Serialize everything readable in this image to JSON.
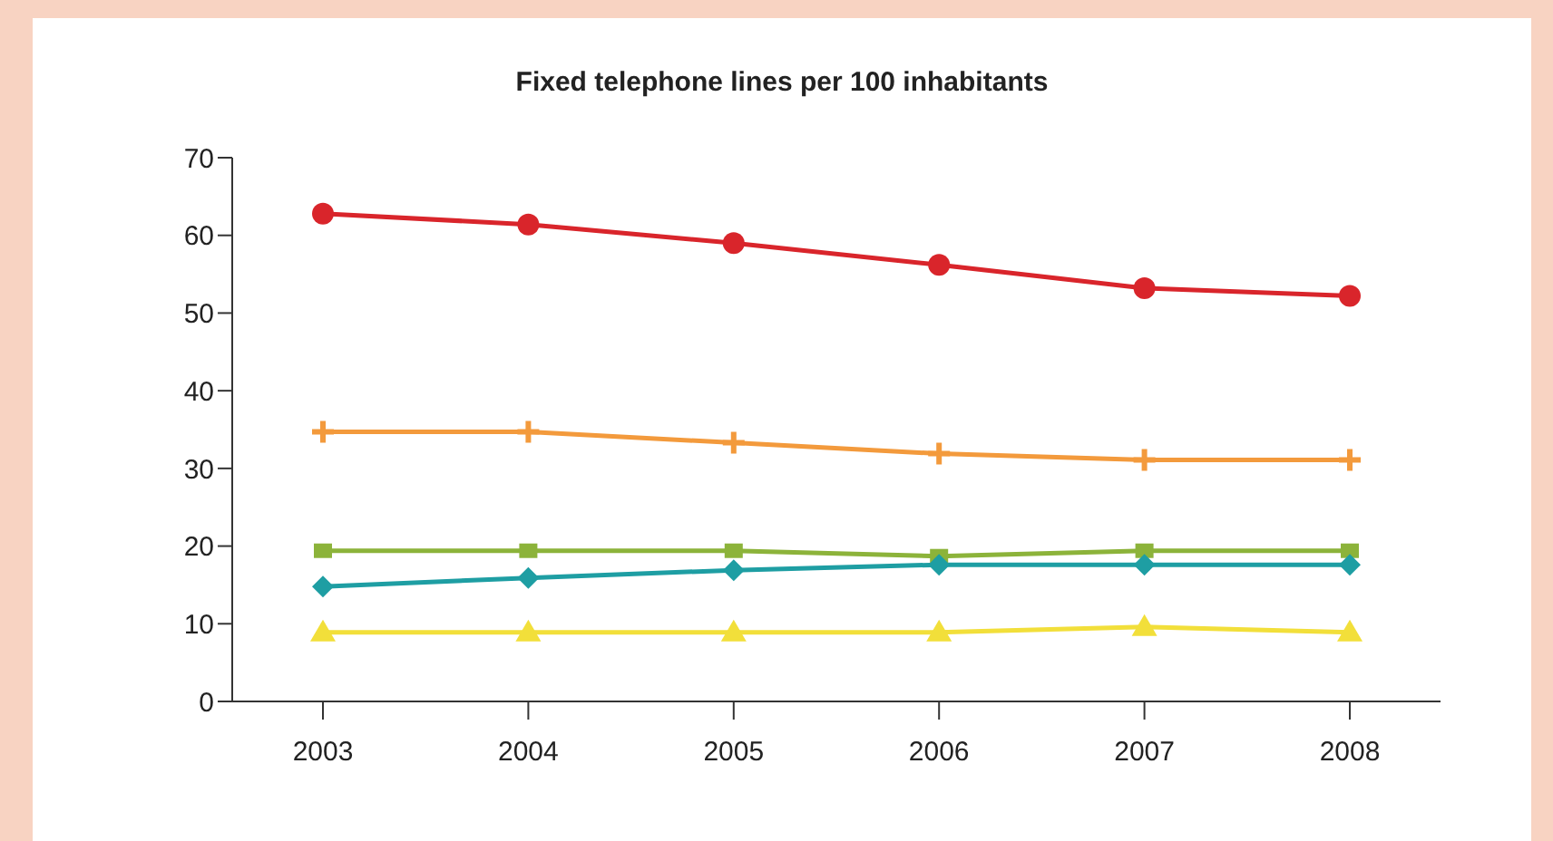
{
  "chart_data": {
    "type": "line",
    "title": "Fixed telephone lines per 100 inhabitants",
    "categories": [
      "2003",
      "2004",
      "2005",
      "2006",
      "2007",
      "2008"
    ],
    "series": [
      {
        "color": "#d9252b",
        "marker": "circle",
        "values": [
          62.8,
          61.4,
          59,
          56.2,
          53.2,
          52.2
        ]
      },
      {
        "color": "#f39a3c",
        "marker": "cross",
        "values": [
          34.7,
          34.7,
          33.3,
          31.9,
          31.1,
          31.1
        ]
      },
      {
        "color": "#8cb33a",
        "marker": "square",
        "values": [
          19.4,
          19.4,
          19.4,
          18.7,
          19.4,
          19.4
        ]
      },
      {
        "color": "#1e9ea3",
        "marker": "diamond",
        "values": [
          14.8,
          15.9,
          16.9,
          17.6,
          17.6,
          17.6
        ]
      },
      {
        "color": "#f2df3a",
        "marker": "triangle",
        "values": [
          8.9,
          8.9,
          8.9,
          8.9,
          9.6,
          8.9
        ]
      }
    ],
    "ylim": [
      0,
      70
    ],
    "yticks": [
      0,
      10,
      20,
      30,
      40,
      50,
      60,
      70
    ],
    "grid": false
  }
}
